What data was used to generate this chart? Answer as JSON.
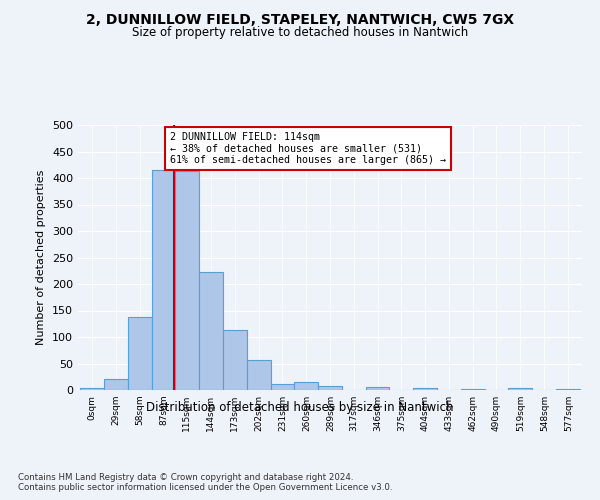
{
  "title_line1": "2, DUNNILLOW FIELD, STAPELEY, NANTWICH, CW5 7GX",
  "title_line2": "Size of property relative to detached houses in Nantwich",
  "xlabel": "Distribution of detached houses by size in Nantwich",
  "ylabel": "Number of detached properties",
  "bar_values": [
    4,
    21,
    138,
    415,
    413,
    222,
    114,
    56,
    12,
    15,
    7,
    0,
    5,
    0,
    4,
    0,
    2,
    0,
    4,
    0,
    2
  ],
  "bin_labels": [
    "0sqm",
    "29sqm",
    "58sqm",
    "87sqm",
    "115sqm",
    "144sqm",
    "173sqm",
    "202sqm",
    "231sqm",
    "260sqm",
    "289sqm",
    "317sqm",
    "346sqm",
    "375sqm",
    "404sqm",
    "433sqm",
    "462sqm",
    "490sqm",
    "519sqm",
    "548sqm",
    "577sqm"
  ],
  "bar_color": "#aec6e8",
  "bar_edge_color": "#5a9fd4",
  "annotation_line1": "2 DUNNILLOW FIELD: 114sqm",
  "annotation_line2": "← 38% of detached houses are smaller (531)",
  "annotation_line3": "61% of semi-detached houses are larger (865) →",
  "annotation_box_color": "#ffffff",
  "annotation_box_edge": "#cc0000",
  "vline_color": "#cc0000",
  "vline_x": 114,
  "ylim": [
    0,
    500
  ],
  "yticks": [
    0,
    50,
    100,
    150,
    200,
    250,
    300,
    350,
    400,
    450,
    500
  ],
  "footer_line1": "Contains HM Land Registry data © Crown copyright and database right 2024.",
  "footer_line2": "Contains public sector information licensed under the Open Government Licence v3.0.",
  "bg_color": "#eef2f9",
  "plot_bg_color": "#eef2f9",
  "bin_width": 29,
  "bin_starts": [
    0,
    29,
    58,
    87,
    115,
    144,
    173,
    202,
    231,
    260,
    289,
    317,
    346,
    375,
    404,
    433,
    462,
    490,
    519,
    548,
    577
  ]
}
